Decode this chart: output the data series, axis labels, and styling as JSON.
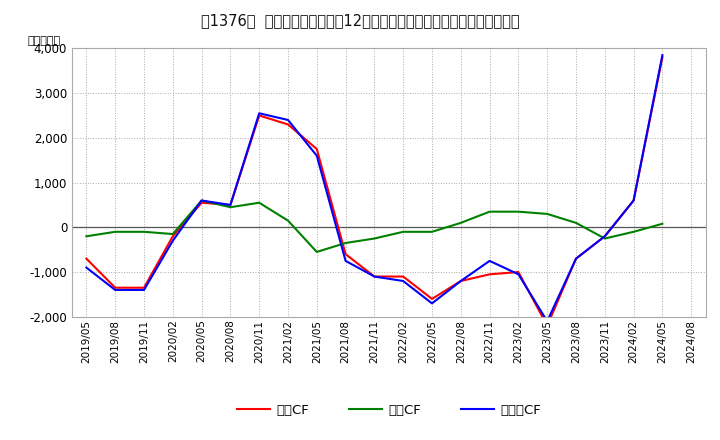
{
  "title": "[  1376  ]  キャッシュフローの12か月移動合計の対前年同期増減額の推移",
  "title_str": "[ 1376 ]  キャッシュフローの12か月移動合計の対前年同期増減額の推移",
  "ylabel": "（百万円）",
  "background_color": "#ffffff",
  "plot_bg_color": "#ffffff",
  "grid_color": "#aaaaaa",
  "x_labels": [
    "2019/05",
    "2019/08",
    "2019/11",
    "2020/02",
    "2020/05",
    "2020/08",
    "2020/11",
    "2021/02",
    "2021/05",
    "2021/08",
    "2021/11",
    "2022/02",
    "2022/05",
    "2022/08",
    "2022/11",
    "2023/02",
    "2023/05",
    "2023/08",
    "2023/11",
    "2024/02",
    "2024/05",
    "2024/08"
  ],
  "eigyo_cf": [
    -700,
    -1350,
    -1350,
    -200,
    550,
    500,
    2500,
    2300,
    1750,
    -600,
    -1100,
    -1100,
    -1600,
    -1200,
    -1050,
    -1000,
    -2200,
    -700,
    -200,
    600,
    3800,
    null
  ],
  "toshi_cf": [
    -200,
    -100,
    -100,
    -150,
    600,
    450,
    550,
    150,
    -550,
    -350,
    -250,
    -100,
    -100,
    100,
    350,
    350,
    300,
    100,
    -250,
    -100,
    80,
    null
  ],
  "free_cf": [
    -900,
    -1400,
    -1400,
    -300,
    600,
    500,
    2550,
    2400,
    1600,
    -750,
    -1100,
    -1200,
    -1700,
    -1200,
    -750,
    -1050,
    -2100,
    -700,
    -200,
    600,
    3850,
    null
  ],
  "ylim": [
    -2000,
    4000
  ],
  "yticks": [
    -2000,
    -1000,
    0,
    1000,
    2000,
    3000,
    4000
  ],
  "line_colors": {
    "eigyo": "#ff0000",
    "toshi": "#008000",
    "free": "#0000ff"
  },
  "legend_labels": {
    "eigyo": "営業CF",
    "toshi": "投資CF",
    "free": "フリーCF"
  }
}
